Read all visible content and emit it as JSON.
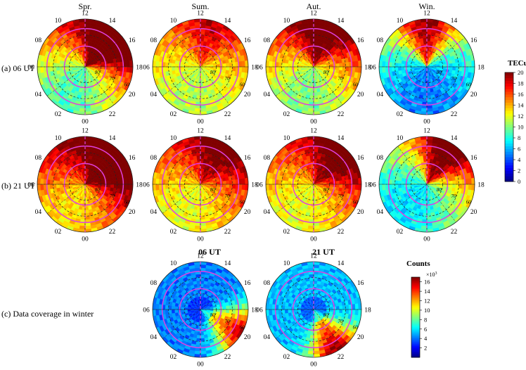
{
  "chart_data": {
    "type": "heatmap",
    "projection": "polar (magnetic latitude vs MLT)",
    "columns": [
      "Spr.",
      "Sum.",
      "Aut.",
      "Win."
    ],
    "rows": [
      "(a) 06 UT",
      "(b) 21 UT"
    ],
    "coverage": {
      "row_label": "(c) Data coverage in winter",
      "columns": [
        "06 UT",
        "21 UT"
      ]
    },
    "mlt_labels": [
      "12",
      "10",
      "08",
      "06",
      "04",
      "02",
      "00",
      "22",
      "20",
      "18",
      "16",
      "14"
    ],
    "lat_labels": [
      "60",
      "70",
      "80"
    ],
    "lat_range": [
      60,
      90
    ],
    "tec_colorbar": {
      "title": "TECu",
      "range": [
        0,
        20
      ],
      "ticks": [
        "0",
        "2",
        "4",
        "6",
        "8",
        "10",
        "12",
        "14",
        "16",
        "18",
        "20"
      ]
    },
    "count_colorbar": {
      "title": "Counts",
      "multiplier": "×10",
      "multiplier_exp": "3",
      "range": [
        0,
        17
      ],
      "ticks": [
        "2",
        "4",
        "6",
        "8",
        "10",
        "12",
        "14",
        "16"
      ]
    },
    "panels": [
      {
        "row": 0,
        "col": 0,
        "kind": "tec",
        "base": 9,
        "day": 11,
        "noon_mlt": 14,
        "hot_mlt": 15,
        "hot": 8
      },
      {
        "row": 0,
        "col": 1,
        "kind": "tec",
        "base": 11,
        "day": 5,
        "noon_mlt": 13,
        "hot_mlt": 13,
        "hot": 3
      },
      {
        "row": 0,
        "col": 2,
        "kind": "tec",
        "base": 10,
        "day": 9,
        "noon_mlt": 13,
        "hot_mlt": 13,
        "hot": 5
      },
      {
        "row": 0,
        "col": 3,
        "kind": "tec",
        "base": 5,
        "day": 6,
        "noon_mlt": 12,
        "hot_mlt": 12,
        "hot": 9
      },
      {
        "row": 1,
        "col": 0,
        "kind": "tec",
        "base": 13,
        "day": 9,
        "noon_mlt": 14,
        "hot_mlt": 16,
        "hot": 4
      },
      {
        "row": 1,
        "col": 1,
        "kind": "tec",
        "base": 12,
        "day": 7,
        "noon_mlt": 14,
        "hot_mlt": 14,
        "hot": 3
      },
      {
        "row": 1,
        "col": 2,
        "kind": "tec",
        "base": 12,
        "day": 7,
        "noon_mlt": 14,
        "hot_mlt": 15,
        "hot": 4
      },
      {
        "row": 1,
        "col": 3,
        "kind": "tec",
        "base": 7,
        "day": 8,
        "noon_mlt": 15,
        "hot_mlt": 14,
        "hot": 8
      },
      {
        "row": 2,
        "col": 1,
        "kind": "count",
        "base": 3,
        "day": 0,
        "noon_mlt": 12,
        "hot_mlt": 20,
        "hot": 12
      },
      {
        "row": 2,
        "col": 2,
        "kind": "count",
        "base": 4,
        "day": 0,
        "noon_mlt": 12,
        "hot_mlt": 22,
        "hot": 12
      }
    ]
  }
}
